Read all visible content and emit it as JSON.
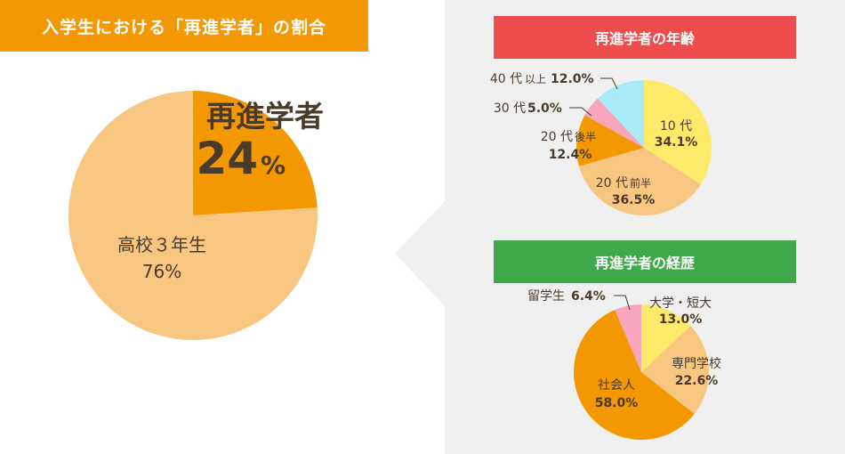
{
  "title": "入学生における「再進学者」の割合",
  "colors": {
    "orange": "#f39800",
    "light_orange": "#f7c680",
    "yellow": "#fde96a",
    "pink": "#f7a6bd",
    "cyan": "#a9eaf8",
    "red_header": "#ed4d4d",
    "green_header": "#3fa84a",
    "panel": "#f0f0f0"
  },
  "chart_data": [
    {
      "type": "pie",
      "title": "入学生における「再進学者」の割合",
      "slices": [
        {
          "name": "再進学者",
          "value": 24,
          "label_value": "24",
          "unit": "%"
        },
        {
          "name": "高校３年生",
          "value": 76,
          "label_value": "76%"
        }
      ]
    },
    {
      "type": "pie",
      "title": "再進学者の年齢",
      "slices": [
        {
          "name": "10 代",
          "sub": "",
          "value": 34.1,
          "label_value": "34.1%"
        },
        {
          "name": "20 代",
          "sub": "前半",
          "value": 36.5,
          "label_value": "36.5%"
        },
        {
          "name": "20 代",
          "sub": "後半",
          "value": 12.4,
          "label_value": "12.4%"
        },
        {
          "name": "30 代",
          "sub": "",
          "value": 5.0,
          "label_value": "5.0%"
        },
        {
          "name": "40 代",
          "sub": "以上",
          "value": 12.0,
          "label_value": "12.0%"
        }
      ]
    },
    {
      "type": "pie",
      "title": "再進学者の経歴",
      "slices": [
        {
          "name": "大学・短大",
          "value": 13.0,
          "label_value": "13.0%"
        },
        {
          "name": "専門学校",
          "value": 22.6,
          "label_value": "22.6%"
        },
        {
          "name": "社会人",
          "value": 58.0,
          "label_value": "58.0%"
        },
        {
          "name": "留学生",
          "value": 6.4,
          "label_value": "6.4%"
        }
      ]
    }
  ]
}
